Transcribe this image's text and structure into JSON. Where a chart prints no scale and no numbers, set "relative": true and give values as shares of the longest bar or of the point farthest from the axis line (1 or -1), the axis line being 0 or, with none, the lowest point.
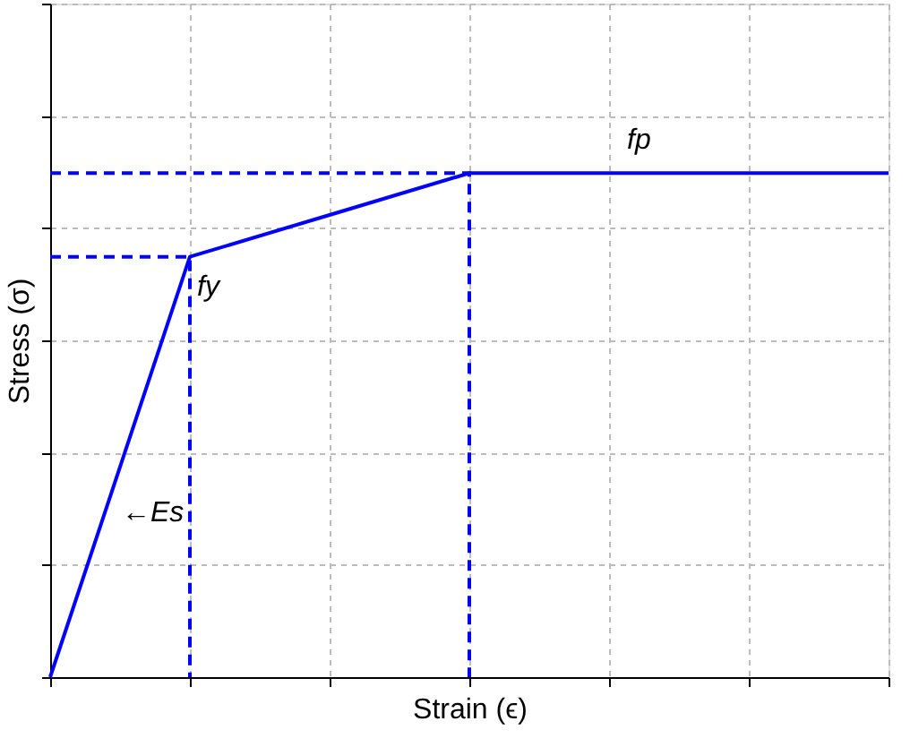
{
  "chart_data": {
    "type": "line",
    "relative": true,
    "xlabel": "Strain (ϵ)",
    "ylabel": "Stress (σ)",
    "categories": [
      null,
      null,
      null,
      null,
      null,
      null,
      null
    ],
    "series": [
      {
        "color": "#0000ff",
        "values": [
          0,
          0.834,
          0.917,
          1,
          1,
          1,
          1
        ]
      }
    ],
    "grid": true,
    "line_style": "solid",
    "marker": "none",
    "tick_labels": false,
    "ref_lines": [
      {
        "axis": "y",
        "value": 0.834,
        "color": "#0000ff",
        "line_style": "dashed"
      },
      {
        "axis": "y",
        "value": 1,
        "color": "#0000ff",
        "line_style": "dashed"
      }
    ],
    "annotations": [
      "fy",
      "fp",
      "←Es"
    ]
  }
}
